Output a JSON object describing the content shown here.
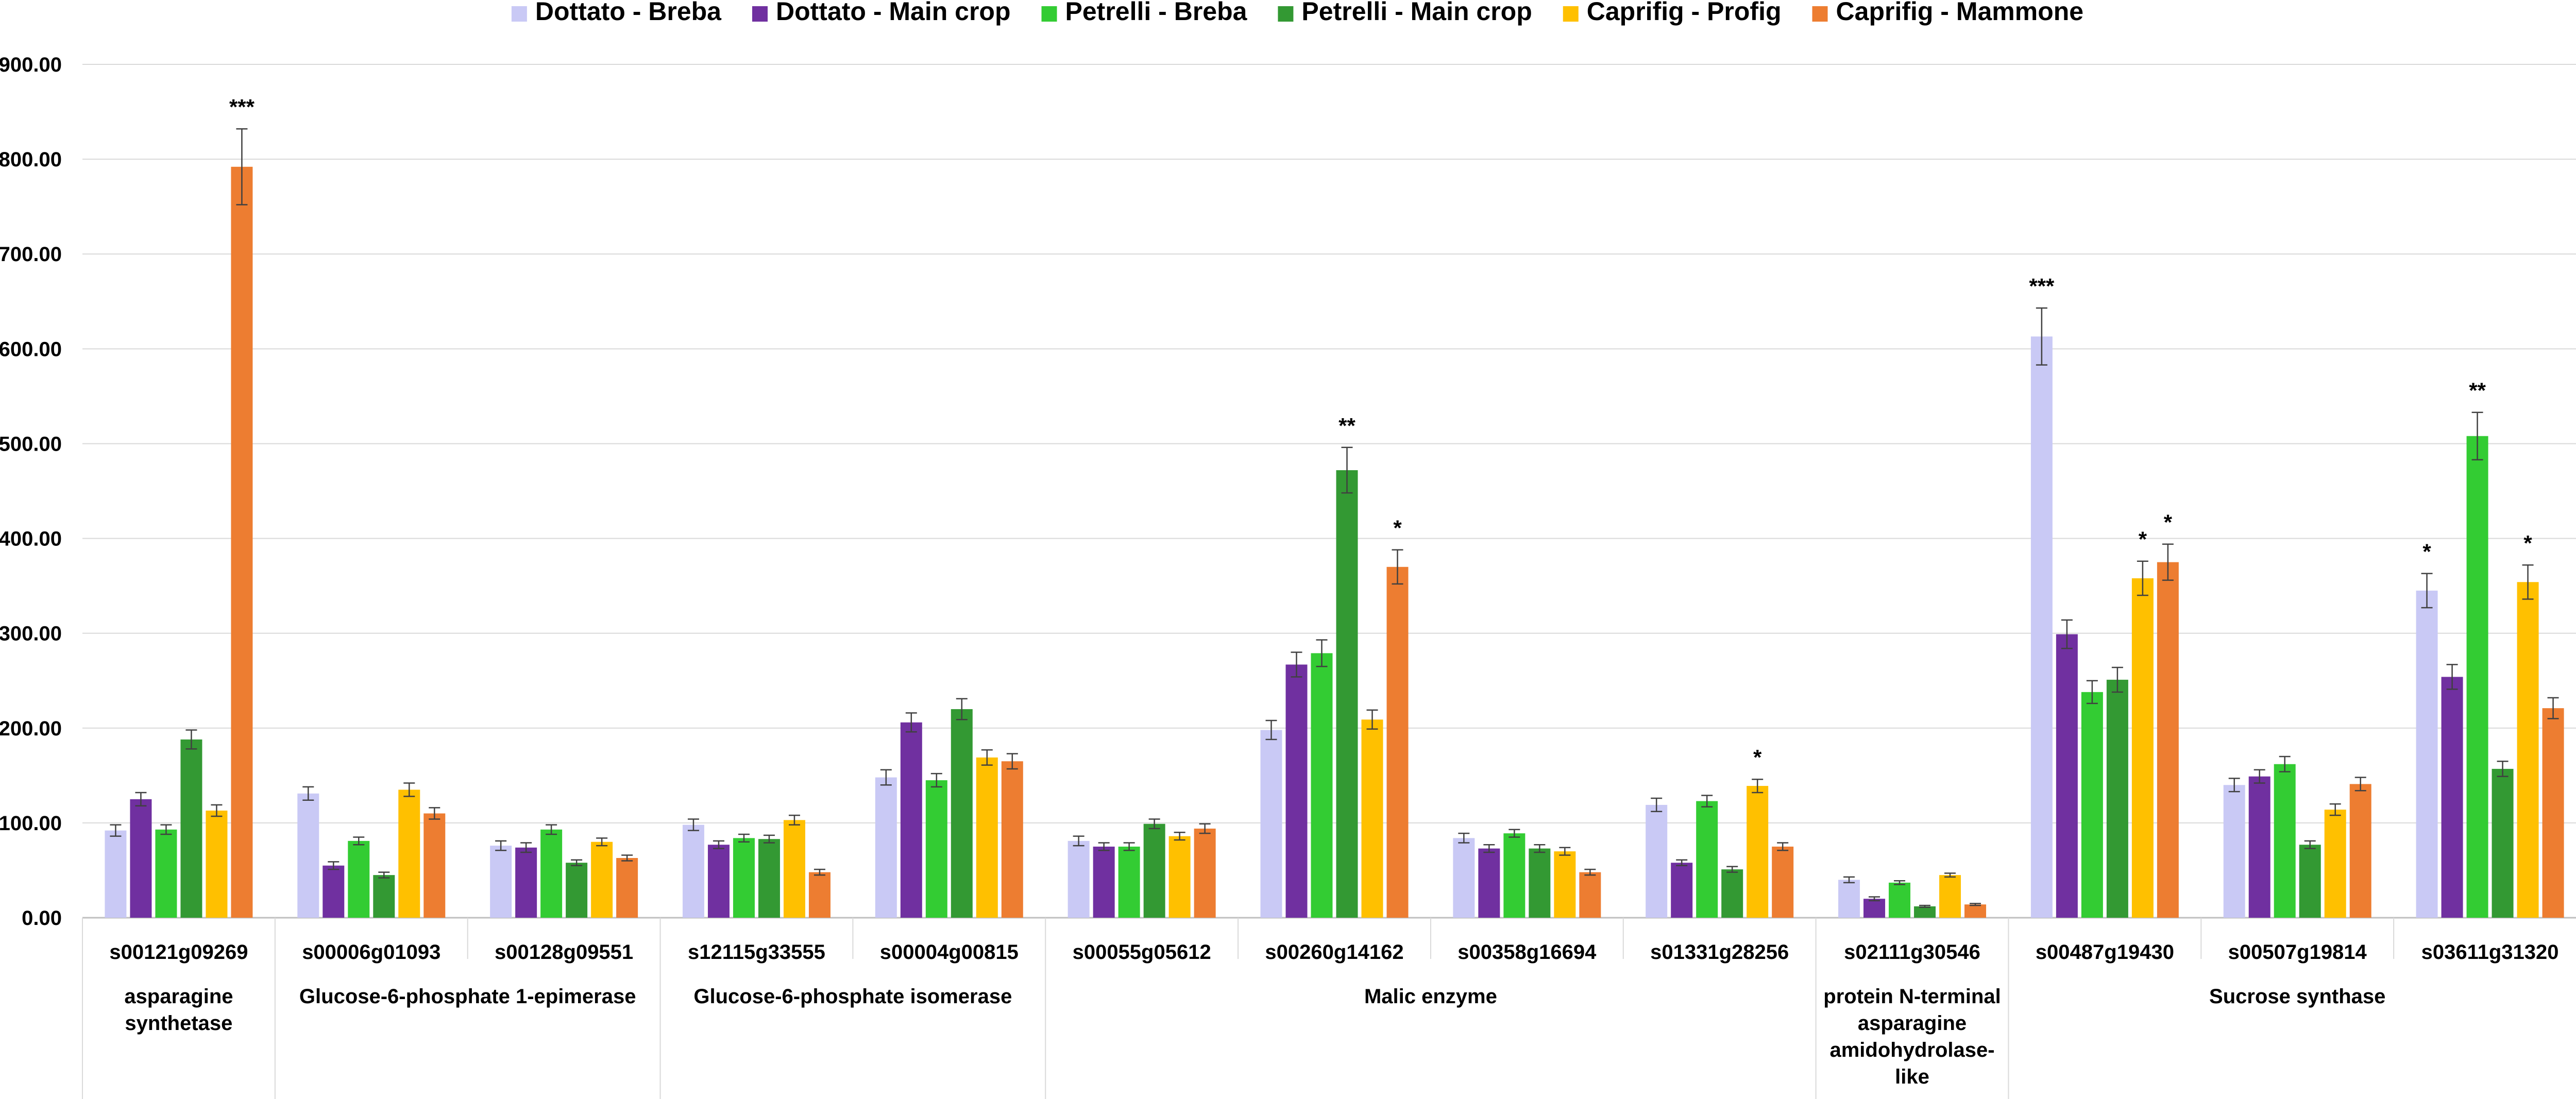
{
  "chart_data": {
    "type": "bar",
    "title": "",
    "xlabel": "",
    "ylabel": "",
    "ylim": [
      0,
      900
    ],
    "yticks": [
      "0.00",
      "100.00",
      "200.00",
      "300.00",
      "400.00",
      "500.00",
      "600.00",
      "700.00",
      "800.00",
      "900.00"
    ],
    "grid": true,
    "legend_position": "top",
    "categories": [
      "s00121g09269",
      "s00006g01093",
      "s00128g09551",
      "s12115g33555",
      "s00004g00815",
      "s00055g05612",
      "s00260g14162",
      "s00358g16694",
      "s01331g28256",
      "s02111g30546",
      "s00487g19430",
      "s00507g19814",
      "s03611g31320"
    ],
    "groups": [
      {
        "lines": [
          "asparagine",
          "synthetase"
        ],
        "span": [
          0,
          0
        ]
      },
      {
        "lines": [
          "Glucose-6-phosphate 1-epimerase"
        ],
        "span": [
          1,
          2
        ]
      },
      {
        "lines": [
          "Glucose-6-phosphate isomerase"
        ],
        "span": [
          3,
          4
        ]
      },
      {
        "lines": [
          "Malic enzyme"
        ],
        "span": [
          5,
          8
        ]
      },
      {
        "lines": [
          "protein N-terminal",
          "asparagine",
          "amidohydrolase-",
          "like"
        ],
        "span": [
          9,
          9
        ]
      },
      {
        "lines": [
          "Sucrose synthase"
        ],
        "span": [
          10,
          12
        ]
      }
    ],
    "series": [
      {
        "name": "Dottato - Breba",
        "color": "#c9c9f5",
        "values": [
          92,
          131,
          76,
          98,
          148,
          81,
          198,
          84,
          119,
          40,
          613,
          140,
          345
        ],
        "errors": [
          6,
          7,
          5,
          6,
          8,
          5,
          10,
          5,
          7,
          3,
          30,
          7,
          18
        ],
        "sig": [
          "",
          "",
          "",
          "",
          "",
          "",
          "",
          "",
          "",
          "",
          "***",
          "",
          "*"
        ]
      },
      {
        "name": "Dottato - Main crop",
        "color": "#7030a0",
        "values": [
          125,
          55,
          74,
          77,
          206,
          75,
          267,
          73,
          58,
          20,
          299,
          149,
          254
        ],
        "errors": [
          7,
          4,
          5,
          4,
          10,
          4,
          13,
          4,
          3,
          2,
          15,
          7,
          13
        ],
        "sig": [
          "",
          "",
          "",
          "",
          "",
          "",
          "",
          "",
          "",
          "",
          "",
          "",
          ""
        ]
      },
      {
        "name": "Petrelli - Breba",
        "color": "#33cc33",
        "values": [
          93,
          81,
          93,
          84,
          145,
          75,
          279,
          89,
          123,
          37,
          238,
          162,
          508
        ],
        "errors": [
          5,
          4,
          5,
          4,
          7,
          4,
          14,
          4,
          6,
          2,
          12,
          8,
          25
        ],
        "sig": [
          "",
          "",
          "",
          "",
          "",
          "",
          "",
          "",
          "",
          "",
          "",
          "",
          "**"
        ]
      },
      {
        "name": "Petrelli - Main crop",
        "color": "#339933",
        "values": [
          188,
          45,
          58,
          83,
          220,
          99,
          472,
          73,
          51,
          12,
          251,
          77,
          157
        ],
        "errors": [
          10,
          3,
          3,
          4,
          11,
          5,
          24,
          4,
          3,
          1,
          13,
          4,
          8
        ],
        "sig": [
          "",
          "",
          "",
          "",
          "",
          "",
          "**",
          "",
          "",
          "",
          "",
          "",
          ""
        ]
      },
      {
        "name": "Caprifig - Profig",
        "color": "#ffc000",
        "values": [
          113,
          135,
          80,
          103,
          169,
          86,
          209,
          70,
          139,
          45,
          358,
          114,
          354
        ],
        "errors": [
          6,
          7,
          4,
          5,
          8,
          4,
          10,
          4,
          7,
          2,
          18,
          6,
          18
        ],
        "sig": [
          "",
          "",
          "",
          "",
          "",
          "",
          "",
          "",
          "*",
          "",
          "*",
          "",
          "*"
        ]
      },
      {
        "name": "Caprifig - Mammone",
        "color": "#ed7d31",
        "values": [
          792,
          110,
          63,
          48,
          165,
          94,
          370,
          48,
          75,
          14,
          375,
          141,
          221
        ],
        "errors": [
          40,
          6,
          3,
          3,
          8,
          5,
          18,
          3,
          4,
          1,
          19,
          7,
          11
        ],
        "sig": [
          "***",
          "",
          "",
          "",
          "",
          "",
          "*",
          "",
          "",
          "",
          "*",
          "",
          ""
        ]
      }
    ]
  }
}
